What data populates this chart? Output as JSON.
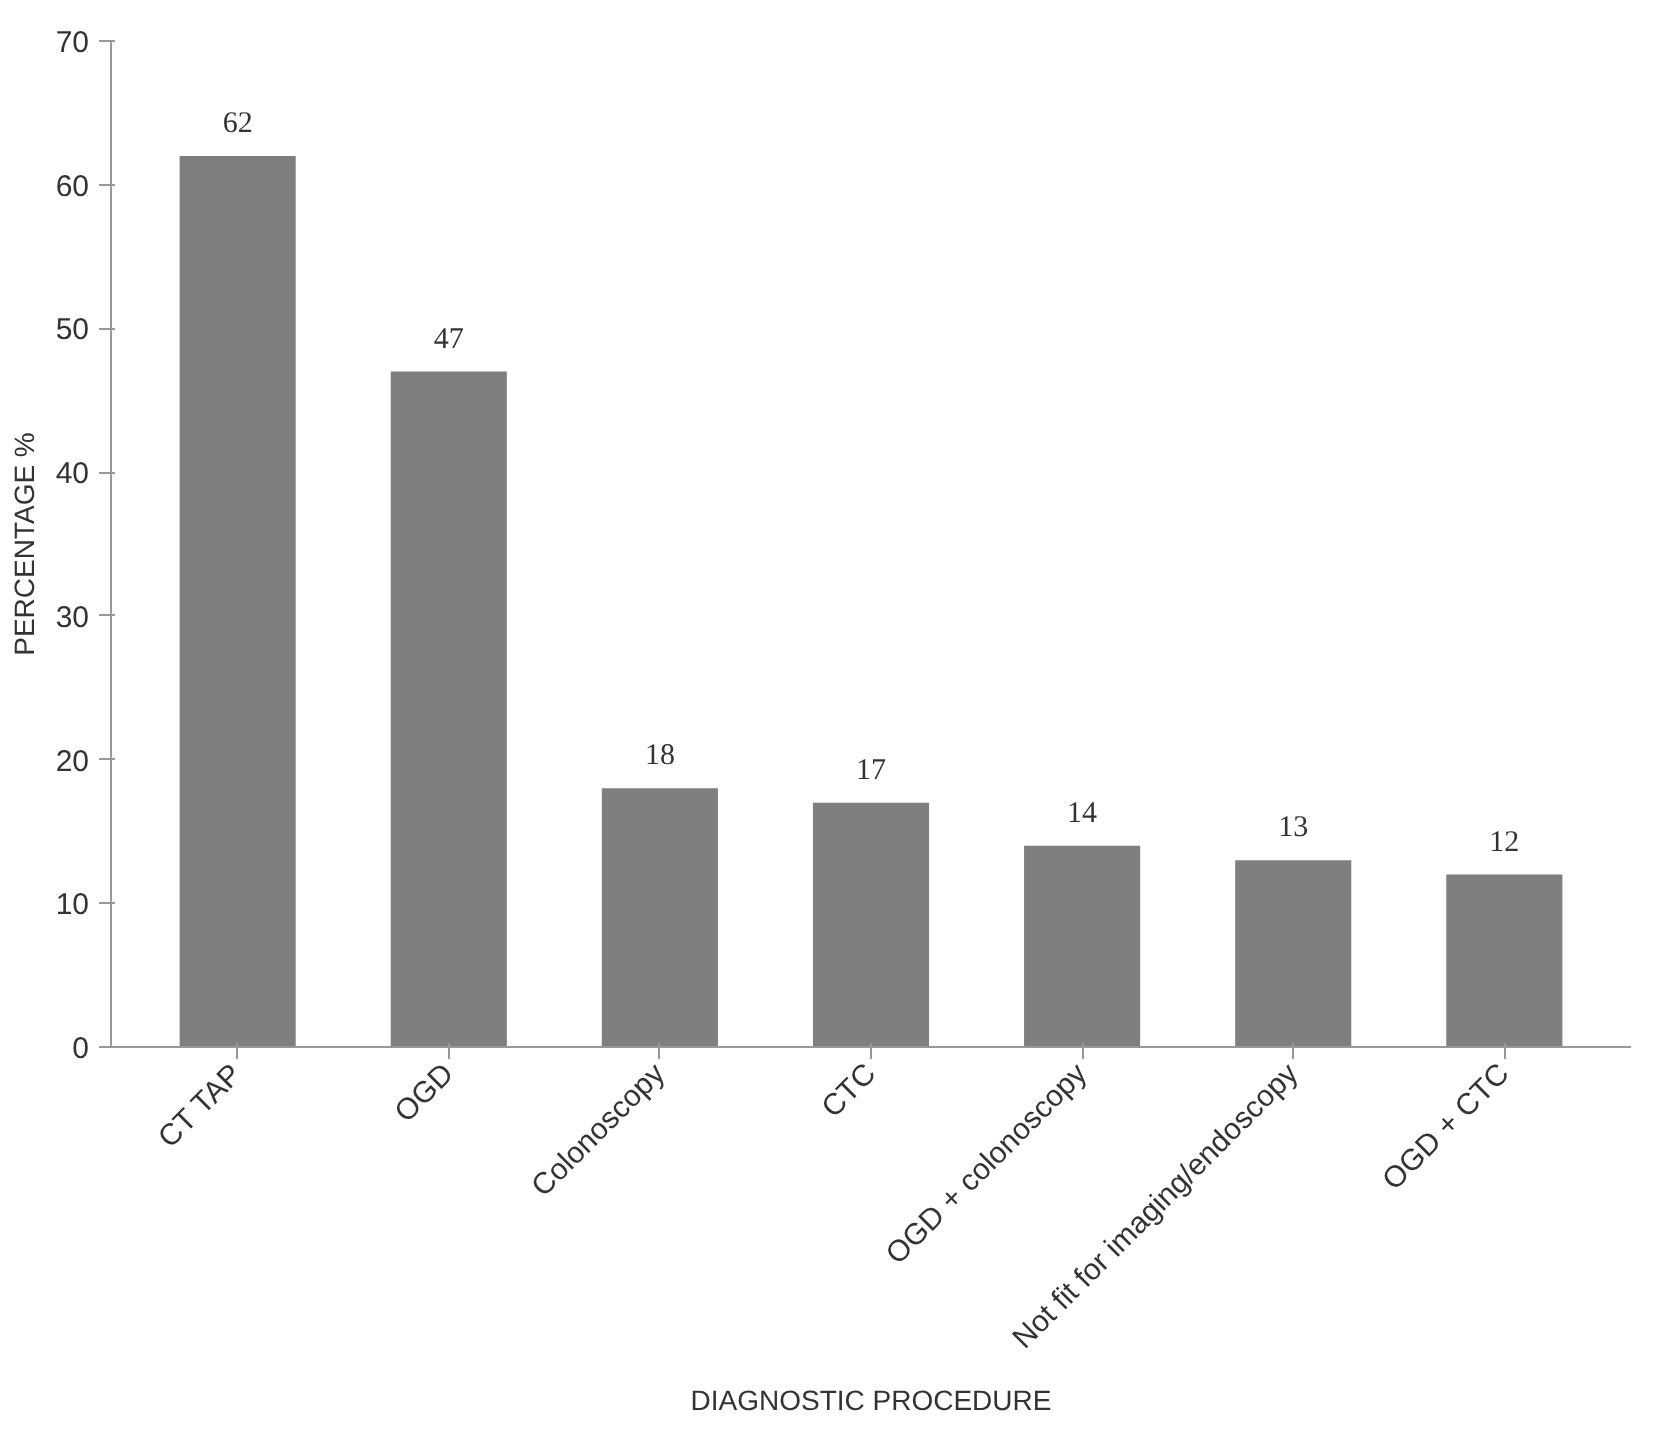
{
  "chart_data": {
    "type": "bar",
    "xlabel": "DIAGNOSTIC PROCEDURE",
    "ylabel": "PERCENTAGE %",
    "categories": [
      "CT TAP",
      "OGD",
      "Colonoscopy",
      "CTC",
      "OGD + colonoscopy",
      "Not fit for imaging/endoscopy",
      "OGD + CTC"
    ],
    "values": [
      62,
      47,
      18,
      17,
      14,
      13,
      12
    ],
    "color": "#7f7f7f",
    "ylim": [
      0,
      70
    ],
    "yticks": [
      0,
      10,
      20,
      30,
      40,
      50,
      60,
      70
    ],
    "grid": false,
    "data_labels": true
  }
}
